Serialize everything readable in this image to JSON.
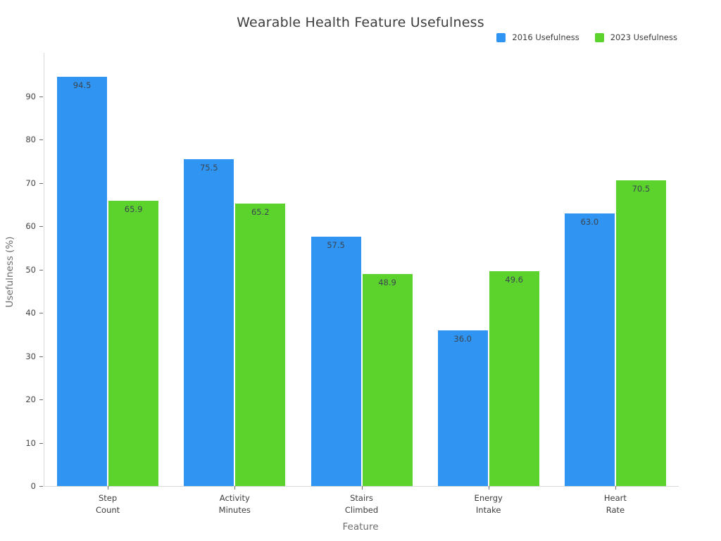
{
  "chart_data": {
    "type": "bar",
    "title": "Wearable Health Feature Usefulness",
    "xlabel": "Feature",
    "ylabel": "Usefulness (%)",
    "categories": [
      "Step\nCount",
      "Activity\nMinutes",
      "Stairs\nClimbed",
      "Energy\nIntake",
      "Heart\nRate"
    ],
    "series": [
      {
        "name": "2016 Usefulness",
        "color": "#3095f2",
        "values": [
          94.5,
          75.5,
          57.5,
          36.0,
          63.0
        ]
      },
      {
        "name": "2023 Usefulness",
        "color": "#5cd32d",
        "values": [
          65.9,
          65.2,
          48.9,
          49.6,
          70.5
        ]
      }
    ],
    "ylim": [
      0,
      100
    ],
    "yticks": [
      0,
      10,
      20,
      30,
      40,
      50,
      60,
      70,
      80,
      90
    ],
    "grid": false,
    "legend_position": "top-right",
    "value_labels": true,
    "value_label_format": "one-decimal"
  }
}
